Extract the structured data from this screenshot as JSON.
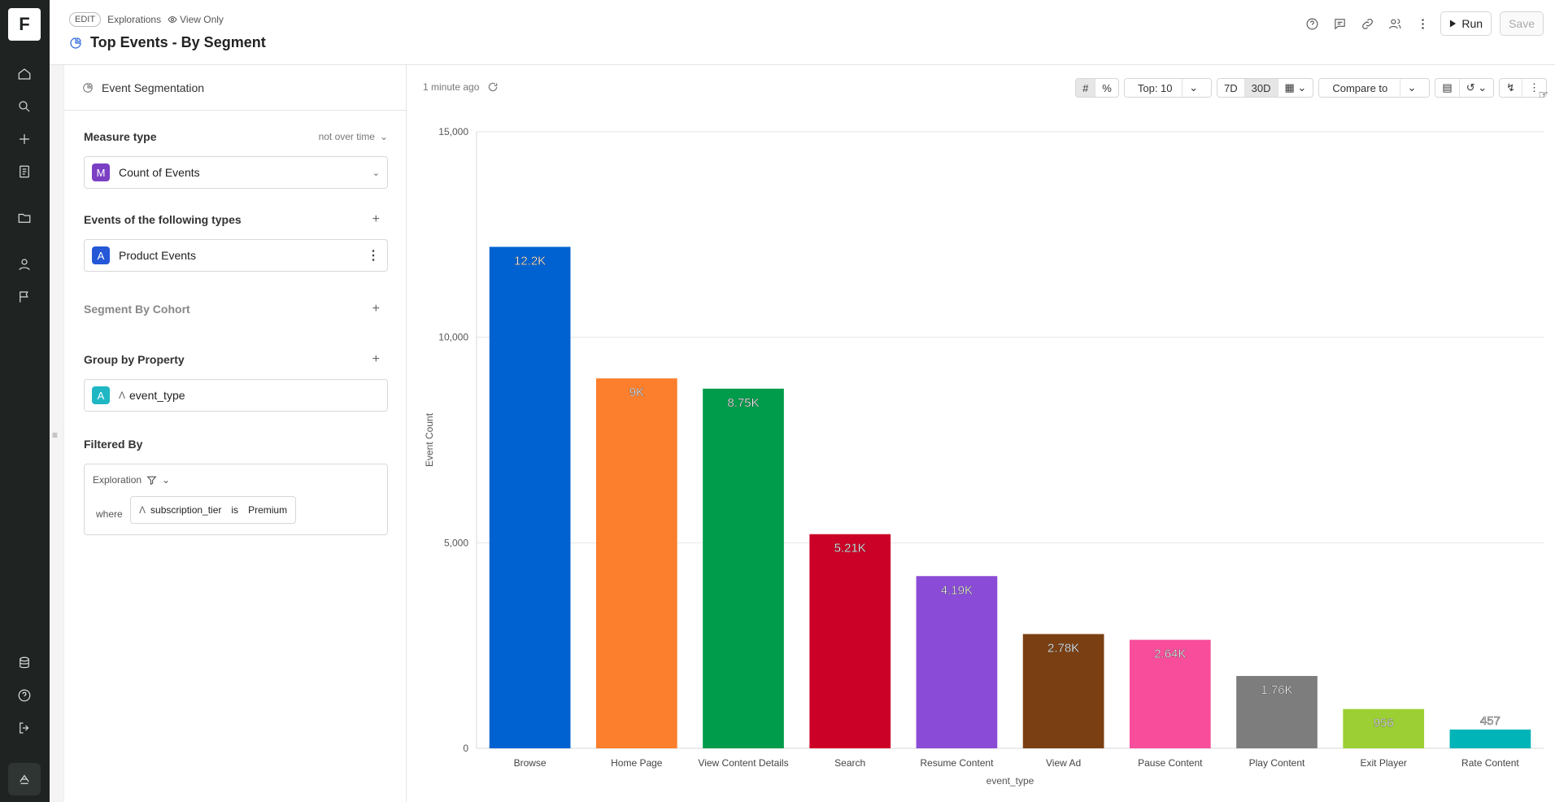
{
  "app": {
    "logo": "F"
  },
  "nav": [
    "home-icon",
    "search-icon",
    "plus-icon",
    "notebook-icon",
    "folder-icon",
    "user-icon",
    "flag-icon",
    "data-icon",
    "help-icon",
    "logout-icon",
    "brand-icon"
  ],
  "header": {
    "mode": "EDIT",
    "breadcrumb": "Explorations",
    "access": "View Only",
    "title": "Top Events - By Segment",
    "run_label": "Run",
    "save_label": "Save"
  },
  "panel": {
    "heading": "Event Segmentation",
    "measure": {
      "title": "Measure type",
      "mode": "not over time",
      "badge": "M",
      "badge_color": "#7b3fc4",
      "value": "Count of Events"
    },
    "events": {
      "title": "Events of the following types",
      "badge": "A",
      "badge_color": "#2458d6",
      "value": "Product Events"
    },
    "cohort": {
      "title": "Segment By Cohort"
    },
    "group": {
      "title": "Group by Property",
      "badge": "A",
      "badge_color": "#1fb7c4",
      "value": "event_type"
    },
    "filter": {
      "title": "Filtered By",
      "scope": "Exploration",
      "where": "where",
      "property": "subscription_tier",
      "op": "is",
      "value": "Premium"
    }
  },
  "main": {
    "updated": "1 minute ago",
    "top": "Top: 10",
    "range_7d": "7D",
    "range_30d": "30D",
    "compare": "Compare to"
  },
  "chart_data": {
    "type": "bar",
    "xlabel": "event_type",
    "ylabel": "Event Count",
    "ylim": [
      0,
      15000
    ],
    "yticks": [
      0,
      5000,
      10000,
      15000
    ],
    "ytick_labels": [
      "0",
      "5,000",
      "10,000",
      "15,000"
    ],
    "grid": true,
    "categories": [
      "Browse",
      "Home Page",
      "View Content Details",
      "Search",
      "Resume Content",
      "View Ad",
      "Pause Content",
      "Play Content",
      "Exit Player",
      "Rate Content"
    ],
    "values": [
      12200,
      9000,
      8750,
      5210,
      4190,
      2780,
      2640,
      1760,
      956,
      457
    ],
    "labels": [
      "12.2K",
      "9K",
      "8.75K",
      "5.21K",
      "4.19K",
      "2.78K",
      "2.64K",
      "1.76K",
      "956",
      "457"
    ],
    "colors": [
      "#0062d1",
      "#fb7f2c",
      "#009c4c",
      "#cc0128",
      "#8a4cd7",
      "#7a3f13",
      "#f84d9b",
      "#7d7d7d",
      "#9bcf33",
      "#00b4b8"
    ]
  }
}
